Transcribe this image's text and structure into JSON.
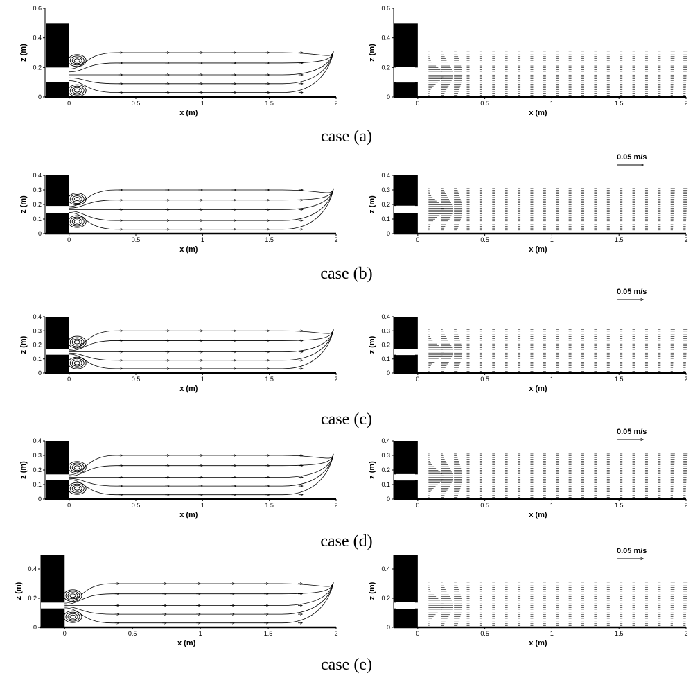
{
  "x_axis": {
    "label": "x (m)",
    "ticks": [
      "0",
      "0.5",
      "1",
      "1.5",
      "2"
    ]
  },
  "z_axis_label": "z (m)",
  "cases": [
    {
      "caption": "case (a)",
      "z_ticks": [
        "0",
        "0.2",
        "0.4",
        "0.6"
      ],
      "scale_label": ""
    },
    {
      "caption": "case (b)",
      "z_ticks": [
        "0",
        "0.1",
        "0.2",
        "0.3",
        "0.4"
      ],
      "scale_label": "0.05 m/s"
    },
    {
      "caption": "case (c)",
      "z_ticks": [
        "0",
        "0.1",
        "0.2",
        "0.3",
        "0.4"
      ],
      "scale_label": "0.05 m/s"
    },
    {
      "caption": "case (d)",
      "z_ticks": [
        "0",
        "0.1",
        "0.2",
        "0.3",
        "0.4"
      ],
      "scale_label": "0.05 m/s"
    },
    {
      "caption": "case (e)",
      "z_ticks": [
        "0",
        "0.2",
        "0.4"
      ],
      "scale_label": "0.05 m/s"
    }
  ],
  "colors": {
    "ink": "#000000",
    "background": "#ffffff"
  }
}
